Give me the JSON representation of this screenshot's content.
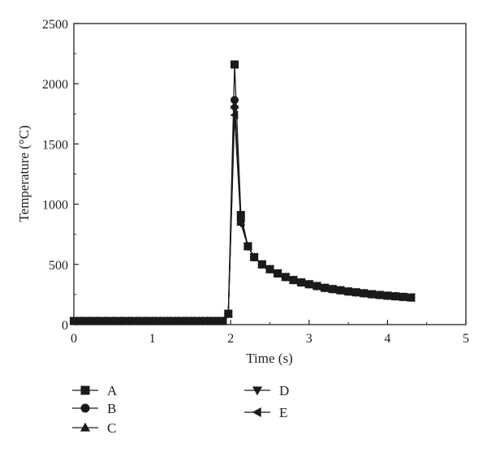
{
  "chart_data": {
    "type": "line",
    "xlabel": "Time (s)",
    "ylabel": "Temperature (°C)",
    "xlim": [
      0,
      5
    ],
    "ylim": [
      0,
      2500
    ],
    "xticks": [
      "0",
      "1",
      "2",
      "3",
      "4",
      "5"
    ],
    "yticks": [
      "0",
      "500",
      "1000",
      "1500",
      "2000",
      "2500"
    ],
    "grid": false,
    "legend_position": "bottom",
    "series": [
      {
        "name": "A",
        "marker": "square",
        "x": [
          0,
          0.1,
          0.2,
          0.3,
          0.4,
          0.5,
          0.6,
          0.7,
          0.8,
          0.9,
          1.0,
          1.1,
          1.2,
          1.3,
          1.4,
          1.5,
          1.6,
          1.7,
          1.8,
          1.9,
          1.97,
          2.05,
          2.13,
          2.22,
          2.3,
          2.4,
          2.5,
          2.6,
          2.7,
          2.8,
          2.9,
          3.0,
          3.1,
          3.2,
          3.3,
          3.4,
          3.5,
          3.6,
          3.7,
          3.8,
          3.9,
          4.0,
          4.1,
          4.2,
          4.3
        ],
        "y": [
          30,
          30,
          30,
          30,
          30,
          30,
          30,
          30,
          30,
          30,
          30,
          30,
          30,
          30,
          30,
          30,
          30,
          30,
          30,
          30,
          90,
          2160,
          910,
          650,
          560,
          500,
          460,
          425,
          395,
          370,
          350,
          335,
          320,
          305,
          295,
          285,
          275,
          268,
          260,
          252,
          246,
          240,
          235,
          230,
          225
        ]
      },
      {
        "name": "B",
        "marker": "circle",
        "x": [
          0,
          0.1,
          0.2,
          0.3,
          0.4,
          0.5,
          0.6,
          0.7,
          0.8,
          0.9,
          1.0,
          1.1,
          1.2,
          1.3,
          1.4,
          1.5,
          1.6,
          1.7,
          1.8,
          1.9,
          1.97,
          2.05,
          2.13,
          2.22,
          2.3,
          2.4,
          2.5,
          2.6,
          2.7,
          2.8,
          2.9,
          3.0,
          3.1,
          3.2,
          3.3,
          3.4,
          3.5,
          3.6,
          3.7,
          3.8,
          3.9,
          4.0,
          4.1,
          4.2,
          4.3
        ],
        "y": [
          30,
          30,
          30,
          30,
          30,
          30,
          30,
          30,
          30,
          30,
          30,
          30,
          30,
          30,
          30,
          30,
          30,
          30,
          30,
          30,
          90,
          1865,
          860,
          650,
          560,
          500,
          460,
          425,
          395,
          370,
          350,
          335,
          320,
          305,
          295,
          285,
          275,
          268,
          260,
          252,
          246,
          240,
          235,
          230,
          225
        ]
      },
      {
        "name": "C",
        "marker": "triangle-up",
        "x": [
          0,
          0.1,
          0.2,
          0.3,
          0.4,
          0.5,
          0.6,
          0.7,
          0.8,
          0.9,
          1.0,
          1.1,
          1.2,
          1.3,
          1.4,
          1.5,
          1.6,
          1.7,
          1.8,
          1.9,
          1.97,
          2.05,
          2.13,
          2.22,
          2.3,
          2.4,
          2.5,
          2.6,
          2.7,
          2.8,
          2.9,
          3.0,
          3.1,
          3.2,
          3.3,
          3.4,
          3.5,
          3.6,
          3.7,
          3.8,
          3.9,
          4.0,
          4.1,
          4.2,
          4.3
        ],
        "y": [
          30,
          30,
          30,
          30,
          30,
          30,
          30,
          30,
          30,
          30,
          30,
          30,
          30,
          30,
          30,
          30,
          30,
          30,
          30,
          30,
          90,
          1820,
          850,
          650,
          560,
          500,
          460,
          425,
          395,
          370,
          350,
          335,
          320,
          305,
          295,
          285,
          275,
          268,
          260,
          252,
          246,
          240,
          235,
          230,
          225
        ]
      },
      {
        "name": "D",
        "marker": "triangle-down",
        "x": [
          0,
          0.1,
          0.2,
          0.3,
          0.4,
          0.5,
          0.6,
          0.7,
          0.8,
          0.9,
          1.0,
          1.1,
          1.2,
          1.3,
          1.4,
          1.5,
          1.6,
          1.7,
          1.8,
          1.9,
          1.97,
          2.05,
          2.13,
          2.22,
          2.3,
          2.4,
          2.5,
          2.6,
          2.7,
          2.8,
          2.9,
          3.0,
          3.1,
          3.2,
          3.3,
          3.4,
          3.5,
          3.6,
          3.7,
          3.8,
          3.9,
          4.0,
          4.1,
          4.2,
          4.3
        ],
        "y": [
          30,
          30,
          30,
          30,
          30,
          30,
          30,
          30,
          30,
          30,
          30,
          30,
          30,
          30,
          30,
          30,
          30,
          30,
          30,
          30,
          90,
          1790,
          845,
          650,
          560,
          500,
          460,
          425,
          395,
          370,
          350,
          335,
          320,
          305,
          295,
          285,
          275,
          268,
          260,
          252,
          246,
          240,
          235,
          230,
          225
        ]
      },
      {
        "name": "E",
        "marker": "triangle-left",
        "x": [
          0,
          0.1,
          0.2,
          0.3,
          0.4,
          0.5,
          0.6,
          0.7,
          0.8,
          0.9,
          1.0,
          1.1,
          1.2,
          1.3,
          1.4,
          1.5,
          1.6,
          1.7,
          1.8,
          1.9,
          1.97,
          2.05,
          2.13,
          2.22,
          2.3,
          2.4,
          2.5,
          2.6,
          2.7,
          2.8,
          2.9,
          3.0,
          3.1,
          3.2,
          3.3,
          3.4,
          3.5,
          3.6,
          3.7,
          3.8,
          3.9,
          4.0,
          4.1,
          4.2,
          4.3
        ],
        "y": [
          30,
          30,
          30,
          30,
          30,
          30,
          30,
          30,
          30,
          30,
          30,
          30,
          30,
          30,
          30,
          30,
          30,
          30,
          30,
          30,
          90,
          1740,
          840,
          650,
          560,
          500,
          460,
          425,
          395,
          370,
          350,
          335,
          320,
          305,
          295,
          285,
          275,
          268,
          260,
          252,
          246,
          240,
          235,
          230,
          225
        ]
      }
    ]
  }
}
